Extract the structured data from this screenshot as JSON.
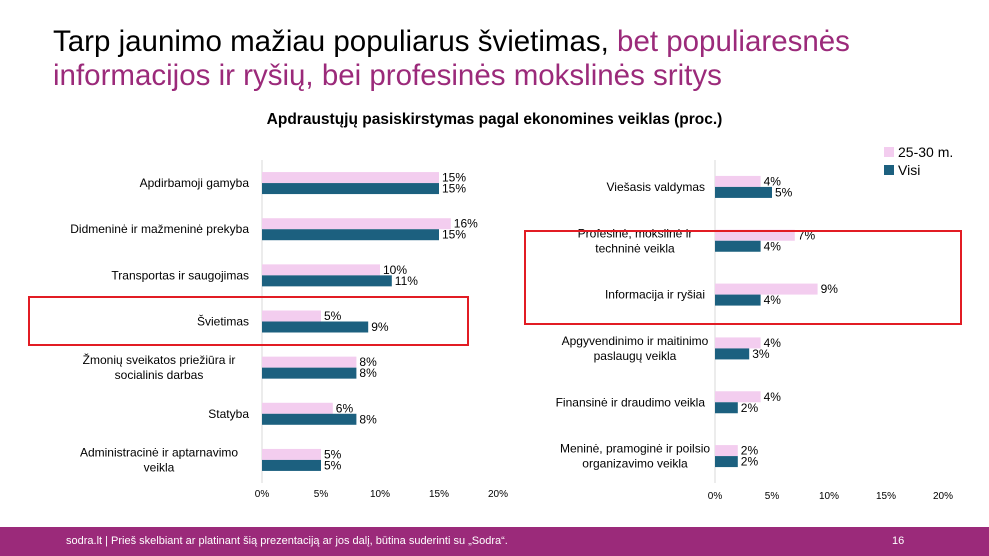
{
  "slide": {
    "title_part1": "Tarp jaunimo mažiau populiarus švietimas, ",
    "title_part2": "bet populiaresnės informacijos ir ryšių, bei profesinės mokslinės sritys",
    "title_highlight_color": "#9b2a7a"
  },
  "footer": {
    "brand": "sodra.lt",
    "text": " | Prieš skelbiant ar platinant šią prezentaciją ar jos dalį, būtina suderinti su „Sodra“.",
    "page": "16",
    "bg_color": "#9b2a7a"
  },
  "chart_title": "Apdraustųjų pasiskirstymas pagal ekonomines veiklas (proc.)",
  "legend": [
    {
      "label": "25-30 m.",
      "color": "#f3cdef"
    },
    {
      "label": "Visi",
      "color": "#1c607f"
    }
  ],
  "chart_data": [
    {
      "type": "bar",
      "orientation": "horizontal",
      "title": "Apdraustųjų pasiskirstymas pagal ekonomines veiklas (proc.)",
      "categories": [
        "Apdirbamoji gamyba",
        "Didmeninė ir mažmeninė prekyba",
        "Transportas ir saugojimas",
        "Švietimas",
        "Žmonių sveikatos priežiūra ir socialinis darbas",
        "Statyba",
        "Administracinė ir aptarnavimo veikla"
      ],
      "series": [
        {
          "name": "25-30 m.",
          "values": [
            15,
            16,
            10,
            5,
            8,
            6,
            5
          ],
          "color": "#f3cdef"
        },
        {
          "name": "Visi",
          "values": [
            15,
            15,
            11,
            9,
            8,
            8,
            5
          ],
          "color": "#1c607f"
        }
      ],
      "xlim": [
        0,
        20
      ],
      "xticks": [
        "0%",
        "5%",
        "10%",
        "15%",
        "20%"
      ],
      "highlighted": [
        "Švietimas"
      ]
    },
    {
      "type": "bar",
      "orientation": "horizontal",
      "title": "Apdraustųjų pasiskirstymas pagal ekonomines veiklas (proc.)",
      "categories": [
        "Viešasis valdymas",
        "Profesinė, mokslinė ir techninė veikla",
        "Informacija ir ryšiai",
        "Apgyvendinimo ir maitinimo paslaugų veikla",
        "Finansinė ir draudimo veikla",
        "Meninė, pramoginė ir poilsio organizavimo veikla"
      ],
      "series": [
        {
          "name": "25-30 m.",
          "values": [
            4,
            7,
            9,
            4,
            4,
            2
          ],
          "color": "#f3cdef"
        },
        {
          "name": "Visi",
          "values": [
            5,
            4,
            4,
            3,
            2,
            2
          ],
          "color": "#1c607f"
        }
      ],
      "xlim": [
        0,
        20
      ],
      "xticks": [
        "0%",
        "5%",
        "10%",
        "15%",
        "20%"
      ],
      "highlighted": [
        "Profesinė, mokslinė ir techninė veikla",
        "Informacija ir ryšiai"
      ]
    }
  ]
}
